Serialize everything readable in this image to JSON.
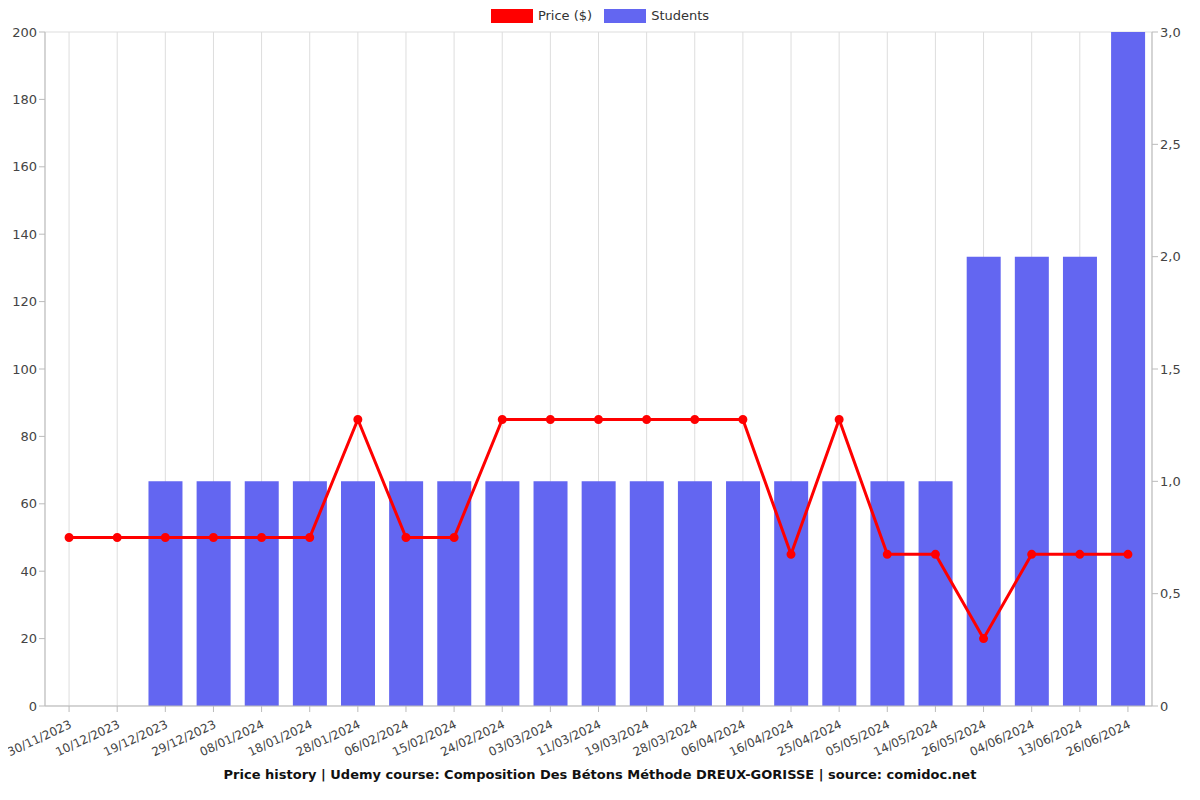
{
  "chart_data": {
    "type": "bar",
    "title": "Price history | Udemy course: Composition Des Bétons Méthode DREUX-GORISSE | source: comidoc.net",
    "categories": [
      "30/11/2023",
      "10/12/2023",
      "19/12/2023",
      "29/12/2023",
      "08/01/2024",
      "18/01/2024",
      "28/01/2024",
      "06/02/2024",
      "15/02/2024",
      "24/02/2024",
      "03/03/2024",
      "11/03/2024",
      "19/03/2024",
      "28/03/2024",
      "06/04/2024",
      "16/04/2024",
      "25/04/2024",
      "05/05/2024",
      "14/05/2024",
      "26/05/2024",
      "04/06/2024",
      "13/06/2024",
      "26/06/2024"
    ],
    "series": [
      {
        "name": "Price ($)",
        "type": "line",
        "color": "#ff0000",
        "marker": "circle",
        "values": [
          50,
          50,
          50,
          50,
          50,
          50,
          85,
          50,
          50,
          85,
          85,
          85,
          85,
          85,
          85,
          45,
          85,
          45,
          45,
          20,
          45,
          45,
          45
        ]
      },
      {
        "name": "Students",
        "type": "bar",
        "color": "#6366f1",
        "axis": "y2",
        "values": [
          0,
          0,
          1,
          1,
          1,
          1,
          1,
          1,
          1,
          1,
          1,
          1,
          1,
          1,
          1,
          1,
          1,
          1,
          1,
          2,
          2,
          2,
          3
        ]
      }
    ],
    "ylim": [
      0,
      200
    ],
    "yticks": [
      0,
      20,
      40,
      60,
      80,
      100,
      120,
      140,
      160,
      180,
      200
    ],
    "y2lim": [
      0,
      3
    ],
    "y2ticks": [
      0,
      {
        "value": 0.5,
        "label": "0,5"
      },
      {
        "value": 1,
        "label": "1,0"
      },
      {
        "value": 1.5,
        "label": "1,5"
      },
      {
        "value": 2,
        "label": "2,0"
      },
      {
        "value": 2.5,
        "label": "2,5"
      },
      {
        "value": 3,
        "label": "3,0"
      }
    ],
    "grid": true,
    "legend": "top"
  }
}
